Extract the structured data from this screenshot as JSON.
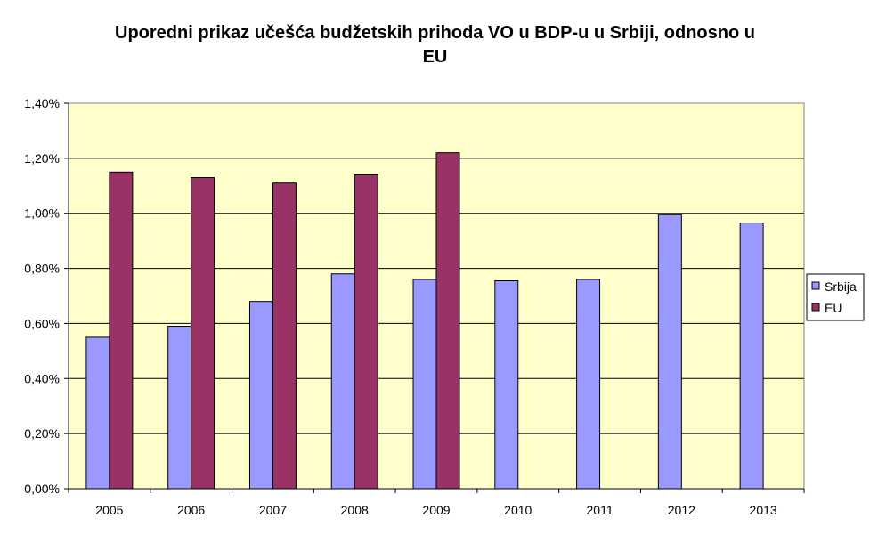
{
  "chart_data": {
    "type": "bar",
    "title_lines": [
      "Uporedni prikaz učešća budžetskih prihoda VO u BDP-u u Srbiji, odnosno u",
      "EU"
    ],
    "categories": [
      "2005",
      "2006",
      "2007",
      "2008",
      "2009",
      "2010",
      "2011",
      "2012",
      "2013"
    ],
    "series": [
      {
        "name": "Srbija",
        "color": "#9999FF",
        "values": [
          0.55,
          0.59,
          0.68,
          0.78,
          0.76,
          0.755,
          0.76,
          0.995,
          0.965
        ]
      },
      {
        "name": "EU",
        "color": "#993366",
        "values": [
          1.15,
          1.13,
          1.11,
          1.14,
          1.22,
          null,
          null,
          null,
          null
        ]
      }
    ],
    "y_ticks": [
      "0,00%",
      "0,20%",
      "0,40%",
      "0,60%",
      "0,80%",
      "1,00%",
      "1,20%",
      "1,40%"
    ],
    "ylim": [
      0,
      1.4
    ],
    "y_unit": "%",
    "grid": true,
    "plot_background": "#FFFFCC",
    "legend_position": "right"
  }
}
